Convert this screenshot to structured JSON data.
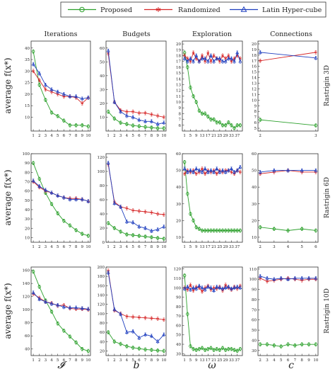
{
  "legend": [
    {
      "name": "Proposed",
      "color": "#2ca02c",
      "marker": "circle"
    },
    {
      "name": "Randomized",
      "color": "#d62728",
      "marker": "star"
    },
    {
      "name": "Latin Hyper-cube",
      "color": "#1f3fbf",
      "marker": "triangle"
    }
  ],
  "columns": [
    "Iterations",
    "Budgets",
    "Exploration",
    "Connections"
  ],
  "rows": [
    "Rastrigin 3D",
    "Rastrigin 6D",
    "Rastrigin 10D"
  ],
  "y_label": "average f(x*)",
  "x_labels": [
    "𝓘",
    "b",
    "ω",
    "c"
  ],
  "chart_data": [
    {
      "type": "line",
      "row": 0,
      "col": 0,
      "xticks": [
        1,
        2,
        3,
        4,
        5,
        6,
        7,
        8,
        9,
        10
      ],
      "yticks": [
        10,
        15,
        20,
        25,
        30,
        35,
        40
      ],
      "ylim": [
        4,
        43
      ],
      "x": [
        1,
        2,
        3,
        4,
        5,
        6,
        7,
        8,
        9,
        10
      ],
      "series": [
        {
          "name": "Proposed",
          "values": [
            38.5,
            24,
            17.5,
            12,
            10.5,
            8.5,
            6.5,
            6.5,
            6.5,
            6
          ]
        },
        {
          "name": "Randomized",
          "values": [
            30,
            26,
            22,
            21,
            20,
            19,
            19,
            18.5,
            16,
            18.5
          ]
        },
        {
          "name": "Latin Hyper-cube",
          "values": [
            33,
            29,
            24,
            22,
            21,
            20,
            19,
            19,
            18,
            18.5
          ]
        }
      ]
    },
    {
      "type": "line",
      "row": 0,
      "col": 1,
      "xticks": [
        1,
        2,
        3,
        4,
        5,
        6,
        7,
        8,
        9,
        10
      ],
      "yticks": [
        10,
        20,
        30,
        40,
        50,
        60
      ],
      "ylim": [
        0,
        65
      ],
      "x": [
        1,
        2,
        3,
        4,
        5,
        6,
        7,
        8,
        9,
        10
      ],
      "series": [
        {
          "name": "Proposed",
          "values": [
            14,
            9,
            6,
            5,
            4,
            3.5,
            3,
            2.5,
            2,
            2
          ]
        },
        {
          "name": "Randomized",
          "values": [
            56,
            21,
            15,
            14,
            14,
            13,
            13,
            12,
            11,
            10
          ]
        },
        {
          "name": "Latin Hyper-cube",
          "values": [
            58,
            21,
            14,
            11,
            10,
            8,
            7,
            7,
            5,
            6
          ]
        }
      ]
    },
    {
      "type": "line",
      "row": 0,
      "col": 2,
      "xticks": [
        1,
        5,
        9,
        13,
        17,
        21,
        25,
        29,
        33,
        37
      ],
      "yticks": [
        6,
        7,
        8,
        9,
        10,
        11,
        12,
        13,
        14,
        15,
        16,
        17,
        18,
        19,
        20
      ],
      "ylim": [
        5,
        20.5
      ],
      "x": [
        1,
        3,
        5,
        7,
        9,
        11,
        13,
        15,
        17,
        19,
        21,
        23,
        25,
        27,
        29,
        31,
        33,
        35,
        37,
        39
      ],
      "series": [
        {
          "name": "Proposed",
          "values": [
            18.5,
            16,
            12.5,
            11,
            10,
            8.5,
            8,
            8,
            7.5,
            7,
            7,
            6.5,
            6.5,
            6,
            6,
            6.5,
            6,
            5.5,
            6,
            6
          ]
        },
        {
          "name": "Randomized",
          "values": [
            18,
            17.5,
            17,
            18.5,
            17.5,
            17,
            18,
            17,
            18.5,
            17,
            18,
            17.5,
            17,
            18,
            17.5,
            18,
            17,
            17.5,
            18,
            17.5
          ]
        },
        {
          "name": "Latin Hyper-cube",
          "values": [
            17.5,
            17,
            17.5,
            17,
            18,
            17,
            17.5,
            17.5,
            17,
            18,
            17,
            17.5,
            17.5,
            17,
            17,
            17.5,
            17.5,
            17,
            18.5,
            17
          ]
        }
      ]
    },
    {
      "type": "line",
      "row": 0,
      "col": 3,
      "xticks": [
        2,
        3
      ],
      "yticks": [
        5,
        6,
        7,
        8,
        9,
        10,
        11,
        12,
        13,
        14,
        15,
        16,
        17,
        18,
        19,
        20
      ],
      "ylim": [
        4.5,
        20.5
      ],
      "x": [
        2,
        3
      ],
      "series": [
        {
          "name": "Proposed",
          "values": [
            6.5,
            5.5
          ]
        },
        {
          "name": "Randomized",
          "values": [
            17,
            18.5
          ]
        },
        {
          "name": "Latin Hyper-cube",
          "values": [
            18.5,
            17.5
          ]
        }
      ]
    },
    {
      "type": "line",
      "row": 1,
      "col": 0,
      "xticks": [
        1,
        2,
        3,
        4,
        5,
        6,
        7,
        8,
        9,
        10
      ],
      "yticks": [
        10,
        20,
        30,
        40,
        50,
        60,
        70,
        80,
        90,
        100
      ],
      "ylim": [
        5,
        100
      ],
      "x": [
        1,
        2,
        3,
        4,
        5,
        6,
        7,
        8,
        9,
        10
      ],
      "series": [
        {
          "name": "Proposed",
          "values": [
            90,
            73,
            58,
            46,
            36,
            28,
            23,
            18,
            14,
            12
          ]
        },
        {
          "name": "Randomized",
          "values": [
            70,
            64,
            60,
            58,
            55,
            53,
            52,
            52,
            51,
            49
          ]
        },
        {
          "name": "Latin Hyper-cube",
          "values": [
            71,
            65,
            61,
            58,
            55,
            53,
            51,
            51,
            51,
            49
          ]
        }
      ]
    },
    {
      "type": "line",
      "row": 1,
      "col": 1,
      "xticks": [
        1,
        2,
        3,
        4,
        5,
        6,
        7,
        8,
        9,
        10
      ],
      "yticks": [
        0,
        20,
        40,
        60,
        80,
        100,
        120
      ],
      "ylim": [
        0,
        125
      ],
      "x": [
        1,
        2,
        3,
        4,
        5,
        6,
        7,
        8,
        9,
        10
      ],
      "series": [
        {
          "name": "Proposed",
          "values": [
            27,
            20,
            15,
            11,
            10,
            9,
            8,
            7,
            6,
            5
          ]
        },
        {
          "name": "Randomized",
          "values": [
            110,
            57,
            50,
            48,
            45,
            44,
            43,
            42,
            40,
            39
          ]
        },
        {
          "name": "Latin Hyper-cube",
          "values": [
            112,
            55,
            50,
            29,
            28,
            22,
            20,
            16,
            18,
            22
          ]
        }
      ]
    },
    {
      "type": "line",
      "row": 1,
      "col": 2,
      "xticks": [
        1,
        5,
        9,
        13,
        17,
        21,
        25,
        29,
        33,
        37
      ],
      "yticks": [
        10,
        20,
        30,
        40,
        50,
        60
      ],
      "ylim": [
        7,
        60
      ],
      "x": [
        1,
        3,
        5,
        7,
        9,
        11,
        13,
        15,
        17,
        19,
        21,
        23,
        25,
        27,
        29,
        31,
        33,
        35,
        37,
        39
      ],
      "series": [
        {
          "name": "Proposed",
          "values": [
            55,
            36,
            24,
            20,
            16,
            15,
            14,
            14,
            14,
            14,
            14,
            14,
            14,
            14,
            14,
            14,
            14,
            14,
            14,
            14
          ]
        },
        {
          "name": "Randomized",
          "values": [
            48,
            50,
            49,
            50,
            48,
            49,
            51,
            48,
            50,
            49,
            50,
            48,
            50,
            49,
            50,
            50,
            49,
            48,
            50,
            49
          ]
        },
        {
          "name": "Latin Hyper-cube",
          "values": [
            51,
            49,
            50,
            49,
            51,
            50,
            49,
            51,
            49,
            50,
            49,
            51,
            49,
            50,
            49,
            50,
            51,
            49,
            50,
            52
          ]
        }
      ]
    },
    {
      "type": "line",
      "row": 1,
      "col": 3,
      "xticks": [
        2,
        3,
        4,
        5,
        6
      ],
      "yticks": [
        10,
        20,
        30,
        40,
        50,
        60
      ],
      "ylim": [
        7,
        60
      ],
      "x": [
        2,
        3,
        4,
        5,
        6
      ],
      "series": [
        {
          "name": "Proposed",
          "values": [
            16,
            15,
            14,
            15,
            14
          ]
        },
        {
          "name": "Randomized",
          "values": [
            48,
            49,
            50,
            49,
            49
          ]
        },
        {
          "name": "Latin Hyper-cube",
          "values": [
            49,
            50,
            50,
            50,
            50
          ]
        }
      ]
    },
    {
      "type": "line",
      "row": 2,
      "col": 0,
      "xticks": [
        1,
        2,
        3,
        4,
        5,
        6,
        7,
        8,
        9,
        10
      ],
      "yticks": [
        40,
        60,
        80,
        100,
        120,
        140,
        160
      ],
      "ylim": [
        30,
        165
      ],
      "x": [
        1,
        2,
        3,
        4,
        5,
        6,
        7,
        8,
        9,
        10
      ],
      "series": [
        {
          "name": "Proposed",
          "values": [
            158,
            135,
            114,
            97,
            79,
            68,
            59,
            50,
            40,
            37
          ]
        },
        {
          "name": "Randomized",
          "values": [
            124,
            118,
            112,
            110,
            106,
            107,
            102,
            101,
            101,
            100
          ]
        },
        {
          "name": "Latin Hyper-cube",
          "values": [
            126,
            116,
            112,
            109,
            107,
            104,
            103,
            103,
            102,
            101
          ]
        }
      ]
    },
    {
      "type": "line",
      "row": 2,
      "col": 1,
      "xticks": [
        1,
        2,
        3,
        4,
        5,
        6,
        7,
        8,
        9,
        10
      ],
      "yticks": [
        0,
        20,
        40,
        60,
        80,
        100,
        120,
        140,
        160,
        180,
        200
      ],
      "ylim": [
        10,
        200
      ],
      "x": [
        1,
        2,
        3,
        4,
        5,
        6,
        7,
        8,
        9,
        10
      ],
      "series": [
        {
          "name": "Proposed",
          "values": [
            60,
            40,
            35,
            30,
            27,
            25,
            23,
            22,
            21,
            20
          ]
        },
        {
          "name": "Randomized",
          "values": [
            192,
            107,
            100,
            94,
            93,
            92,
            91,
            90,
            89,
            87
          ]
        },
        {
          "name": "Latin Hyper-cube",
          "values": [
            188,
            109,
            99,
            60,
            62,
            48,
            55,
            52,
            40,
            55
          ]
        }
      ]
    },
    {
      "type": "line",
      "row": 2,
      "col": 2,
      "xticks": [
        1,
        5,
        9,
        13,
        17,
        21,
        25,
        29,
        33,
        37
      ],
      "yticks": [
        30,
        40,
        50,
        60,
        70,
        80,
        90,
        100,
        110,
        120
      ],
      "ylim": [
        28,
        122
      ],
      "x": [
        1,
        3,
        5,
        7,
        9,
        11,
        13,
        15,
        17,
        19,
        21,
        23,
        25,
        27,
        29,
        31,
        33,
        35,
        37,
        39
      ],
      "series": [
        {
          "name": "Proposed",
          "values": [
            113,
            72,
            38,
            35,
            34,
            35,
            36,
            34,
            35,
            36,
            34,
            35,
            34,
            36,
            34,
            35,
            35,
            34,
            33,
            35
          ]
        },
        {
          "name": "Randomized",
          "values": [
            100,
            98,
            103,
            97,
            101,
            100,
            96,
            100,
            102,
            98,
            100,
            99,
            101,
            97,
            103,
            100,
            98,
            101,
            99,
            102
          ]
        },
        {
          "name": "Latin Hyper-cube",
          "values": [
            99,
            101,
            98,
            100,
            99,
            102,
            100,
            98,
            101,
            100,
            97,
            101,
            100,
            99,
            100,
            101,
            99,
            100,
            101,
            100
          ]
        }
      ]
    },
    {
      "type": "line",
      "row": 2,
      "col": 3,
      "xticks": [
        2,
        3,
        4,
        5,
        6,
        7,
        8,
        9,
        10
      ],
      "yticks": [
        30,
        40,
        50,
        60,
        70,
        80,
        90,
        100,
        110
      ],
      "ylim": [
        25,
        112
      ],
      "x": [
        2,
        3,
        4,
        5,
        6,
        7,
        8,
        9,
        10
      ],
      "series": [
        {
          "name": "Proposed",
          "values": [
            36,
            36,
            35,
            34,
            36,
            35,
            36,
            36,
            36
          ]
        },
        {
          "name": "Randomized",
          "values": [
            101,
            98,
            99,
            100,
            101,
            100,
            99,
            100,
            100
          ]
        },
        {
          "name": "Latin Hyper-cube",
          "values": [
            103,
            101,
            100,
            101,
            100,
            101,
            101,
            101,
            101
          ]
        }
      ]
    }
  ]
}
